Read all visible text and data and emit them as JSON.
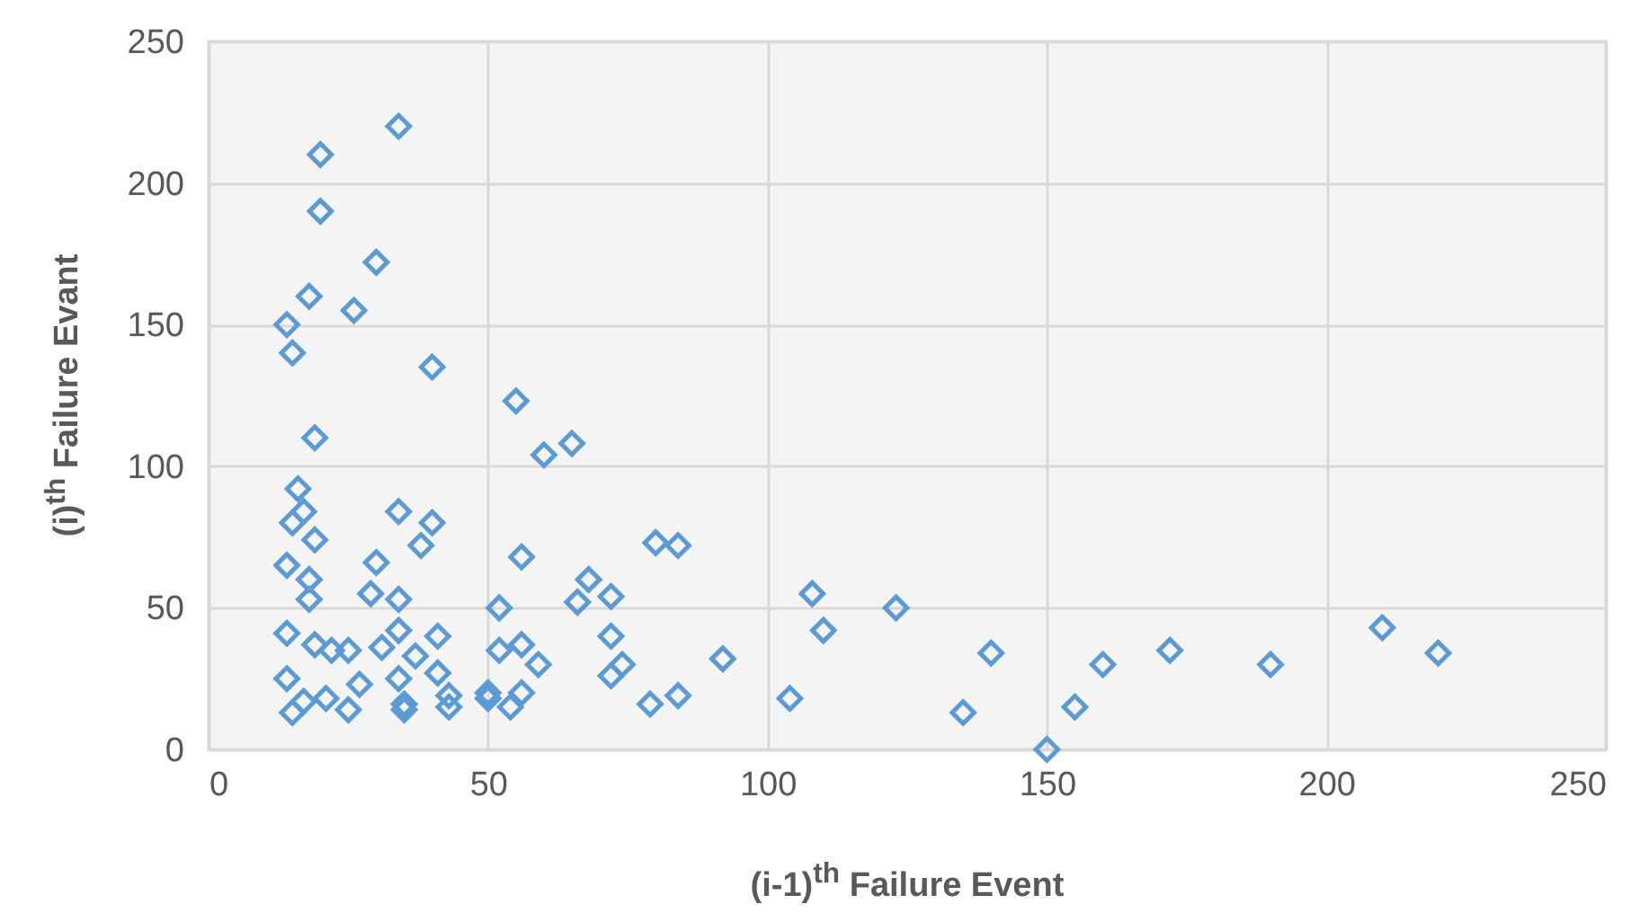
{
  "chart_data": {
    "type": "scatter",
    "xlabel": "(i-1)$^{th}$ Failure Event",
    "ylabel": "(i)$^{th}$ Failure Evant",
    "xlim": [
      0,
      250
    ],
    "xticks": [
      0,
      50,
      100,
      150,
      200,
      250
    ],
    "ylim": [
      0,
      250
    ],
    "yticks": [
      0,
      50,
      100,
      150,
      200,
      250
    ],
    "grid": true,
    "marker": "diamond",
    "series": [
      {
        "color": "#5b9bd5",
        "x": [
          34,
          20,
          20,
          30,
          18,
          14,
          26,
          15,
          40,
          19,
          55,
          65,
          60,
          16,
          17,
          34,
          15,
          40,
          19,
          38,
          80,
          84,
          56,
          30,
          14,
          18,
          18,
          29,
          34,
          68,
          108,
          123,
          52,
          72,
          66,
          14,
          19,
          22,
          34,
          41,
          25,
          31,
          37,
          52,
          56,
          72,
          110,
          140,
          172,
          210,
          220,
          190,
          160,
          92,
          74,
          59,
          72,
          14,
          27,
          34,
          41,
          17,
          21,
          15,
          25,
          35,
          43,
          50,
          54,
          56,
          79,
          84,
          104,
          135,
          155,
          150,
          43,
          50,
          35
        ],
        "values": [
          220,
          210,
          190,
          172,
          160,
          150,
          155,
          140,
          135,
          110,
          123,
          108,
          104,
          92,
          84,
          84,
          80,
          80,
          74,
          72,
          73,
          72,
          68,
          66,
          65,
          60,
          53,
          55,
          53,
          60,
          55,
          50,
          50,
          54,
          52,
          41,
          37,
          35,
          42,
          40,
          35,
          36,
          33,
          35,
          37,
          40,
          42,
          34,
          35,
          43,
          34,
          30,
          30,
          32,
          30,
          30,
          26,
          25,
          23,
          25,
          27,
          17,
          18,
          13,
          14,
          14,
          19,
          18,
          15,
          20,
          16,
          19,
          18,
          13,
          15,
          0,
          15,
          20,
          16
        ]
      }
    ]
  }
}
